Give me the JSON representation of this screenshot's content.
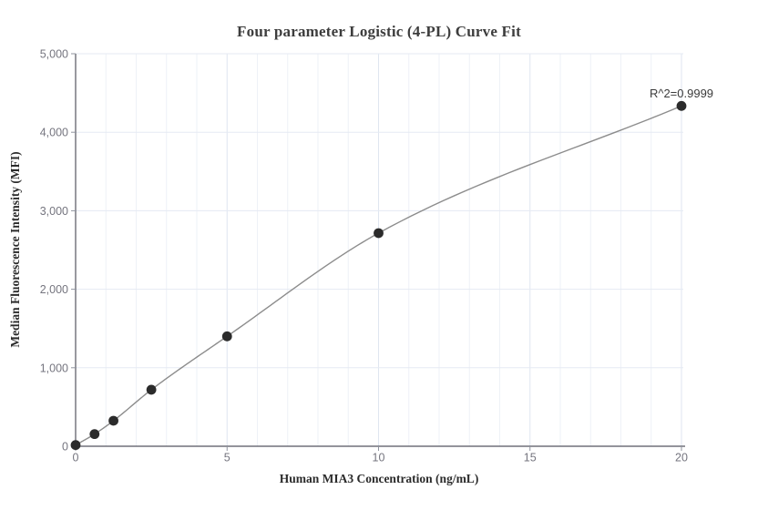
{
  "chart_data": {
    "type": "scatter",
    "title": "Four parameter Logistic (4-PL) Curve Fit",
    "xlabel": "Human MIA3 Concentration (ng/mL)",
    "ylabel": "Median Fluorescence Intensity (MFI)",
    "annotation": "R^2=0.9999",
    "x": [
      0,
      0.625,
      1.25,
      2.5,
      5,
      10,
      20
    ],
    "y": [
      15,
      155,
      325,
      720,
      1400,
      2715,
      4335
    ],
    "xlim": [
      0,
      20
    ],
    "ylim": [
      0,
      5000
    ],
    "x_ticks": [
      0,
      5,
      10,
      15,
      20
    ],
    "y_ticks": [
      0,
      1000,
      2000,
      3000,
      4000,
      5000
    ],
    "x_minor_grid_step": 1,
    "grid": "on",
    "legend": "none",
    "curve": "4-PL fit through all points",
    "colors": {
      "background": "#ffffff",
      "point": "#2b2b2b",
      "curve": "#8c8c8c",
      "axis": "#55555f",
      "tick": "#8f939e",
      "tick_label": "#75757f",
      "grid_minor": "#eef1f7",
      "grid_major": "#dfe6f0",
      "grid_horizontal": "#e5eaf3",
      "title_text": "#3d3d3d",
      "annotation_text": "#3b3b3b"
    }
  }
}
